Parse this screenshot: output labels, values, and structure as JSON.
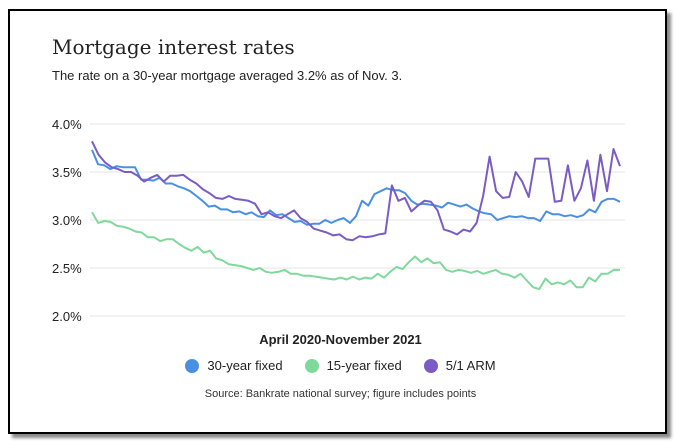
{
  "chart_data": {
    "type": "line",
    "title": "Mortgage interest rates",
    "subtitle": "The rate on a 30-year mortgage averaged 3.2% as of Nov. 3.",
    "xlabel": "April 2020-November 2021",
    "ylabel": "",
    "ylim": [
      2.0,
      4.0
    ],
    "yticks": [
      "2.0%",
      "2.5%",
      "3.0%",
      "3.5%",
      "4.0%"
    ],
    "grid": "horizontal",
    "legend_position": "bottom",
    "source": "Source: Bankrate national survey; figure includes points",
    "series": [
      {
        "name": "30-year fixed",
        "color": "#4a90e2",
        "values": [
          3.73,
          3.58,
          3.57,
          3.53,
          3.56,
          3.55,
          3.55,
          3.55,
          3.42,
          3.42,
          3.41,
          3.44,
          3.38,
          3.38,
          3.35,
          3.33,
          3.3,
          3.25,
          3.2,
          3.14,
          3.15,
          3.11,
          3.11,
          3.08,
          3.09,
          3.06,
          3.08,
          3.04,
          3.03,
          3.1,
          3.05,
          3.06,
          3.02,
          2.98,
          2.99,
          2.95,
          2.96,
          2.96,
          3.0,
          2.97,
          3.0,
          3.02,
          2.97,
          3.04,
          3.2,
          3.15,
          3.27,
          3.3,
          3.33,
          3.31,
          3.31,
          3.28,
          3.2,
          3.16,
          3.17,
          3.16,
          3.15,
          3.13,
          3.18,
          3.16,
          3.14,
          3.16,
          3.12,
          3.09,
          3.07,
          3.06,
          3.0,
          3.02,
          3.04,
          3.03,
          3.04,
          3.02,
          3.02,
          2.99,
          3.09,
          3.06,
          3.06,
          3.04,
          3.05,
          3.03,
          3.05,
          3.11,
          3.08,
          3.19,
          3.22,
          3.22,
          3.19
        ]
      },
      {
        "name": "15-year fixed",
        "color": "#7ed99b",
        "values": [
          3.08,
          2.97,
          2.99,
          2.98,
          2.94,
          2.93,
          2.91,
          2.88,
          2.87,
          2.82,
          2.82,
          2.78,
          2.8,
          2.8,
          2.75,
          2.71,
          2.68,
          2.72,
          2.66,
          2.68,
          2.6,
          2.58,
          2.54,
          2.53,
          2.52,
          2.5,
          2.48,
          2.5,
          2.46,
          2.45,
          2.46,
          2.48,
          2.44,
          2.44,
          2.42,
          2.42,
          2.41,
          2.4,
          2.39,
          2.38,
          2.4,
          2.38,
          2.41,
          2.38,
          2.4,
          2.39,
          2.44,
          2.4,
          2.46,
          2.51,
          2.49,
          2.56,
          2.62,
          2.56,
          2.6,
          2.55,
          2.56,
          2.48,
          2.46,
          2.48,
          2.47,
          2.45,
          2.47,
          2.44,
          2.46,
          2.48,
          2.44,
          2.43,
          2.4,
          2.44,
          2.37,
          2.3,
          2.28,
          2.39,
          2.33,
          2.35,
          2.33,
          2.37,
          2.3,
          2.3,
          2.4,
          2.36,
          2.44,
          2.44,
          2.48,
          2.48
        ]
      },
      {
        "name": "5/1 ARM",
        "color": "#7b5cc4",
        "values": [
          3.82,
          3.68,
          3.6,
          3.55,
          3.53,
          3.5,
          3.5,
          3.46,
          3.4,
          3.44,
          3.47,
          3.4,
          3.46,
          3.46,
          3.47,
          3.42,
          3.38,
          3.32,
          3.28,
          3.23,
          3.22,
          3.25,
          3.22,
          3.21,
          3.2,
          3.17,
          3.06,
          3.08,
          3.04,
          3.02,
          3.06,
          3.1,
          3.02,
          2.98,
          2.91,
          2.89,
          2.87,
          2.84,
          2.85,
          2.8,
          2.79,
          2.83,
          2.82,
          2.83,
          2.85,
          2.86,
          3.36,
          3.2,
          3.23,
          3.09,
          3.15,
          3.2,
          3.19,
          3.1,
          2.9,
          2.88,
          2.85,
          2.9,
          2.88,
          2.97,
          3.25,
          3.66,
          3.3,
          3.23,
          3.24,
          3.5,
          3.4,
          3.24,
          3.64,
          3.64,
          3.64,
          3.19,
          3.2,
          3.57,
          3.2,
          3.33,
          3.62,
          3.2,
          3.68,
          3.3,
          3.74,
          3.56
        ]
      }
    ]
  }
}
